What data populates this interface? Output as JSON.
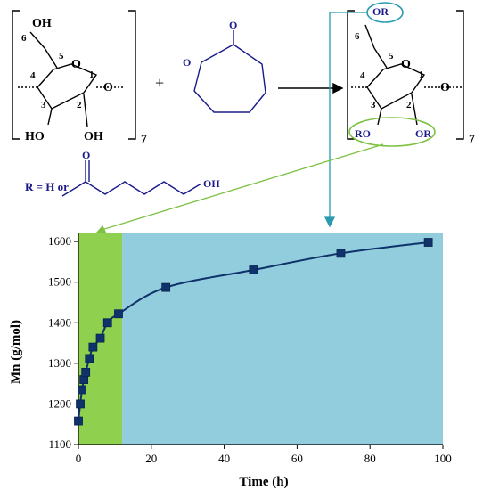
{
  "scheme": {
    "reactant1": {
      "substituents": [
        "OH",
        "HO",
        "OH"
      ],
      "ring_numbers": [
        "1",
        "2",
        "3",
        "4",
        "5",
        "6"
      ],
      "ring_oxygen": "O",
      "glycosidic_oxygen": "O",
      "repeat": "7"
    },
    "plus": "+",
    "reactant2": {
      "ring_oxygen": "O",
      "carbonyl_oxygen": "O"
    },
    "product": {
      "substituents": [
        "OR",
        "RO",
        "OR"
      ],
      "ring_numbers": [
        "1",
        "2",
        "3",
        "4",
        "5",
        "6"
      ],
      "ring_oxygen": "O",
      "glycosidic_oxygen": "O",
      "repeat": "7"
    },
    "r_definition": "R = H or",
    "chain": {
      "carbonyl_oxygen": "O",
      "terminal": "OH"
    },
    "colors": {
      "ring": "#1a1a8c",
      "green": "#7dc242",
      "teal": "#2a9ab0"
    }
  },
  "chart_data": {
    "type": "scatter",
    "xlabel": "Time (h)",
    "ylabel": "Mn (g/mol)",
    "xlim": [
      0,
      100
    ],
    "ylim": [
      1100,
      1620
    ],
    "xticks": [
      0,
      20,
      40,
      60,
      80,
      100
    ],
    "yticks": [
      1100,
      1200,
      1300,
      1400,
      1500,
      1600
    ],
    "grid": false,
    "shaded_regions": [
      {
        "x": [
          0,
          12
        ],
        "color": "#8fd14f"
      },
      {
        "x": [
          12,
          100
        ],
        "color": "#92cddd"
      }
    ],
    "series": [
      {
        "marker": "square",
        "color": "#10326b",
        "x": [
          0,
          0.5,
          1,
          1.5,
          2,
          3,
          4,
          6,
          8,
          11,
          24,
          48,
          72,
          96
        ],
        "y": [
          1158,
          1200,
          1235,
          1260,
          1278,
          1312,
          1340,
          1362,
          1400,
          1422,
          1487,
          1530,
          1571,
          1598
        ]
      }
    ]
  }
}
